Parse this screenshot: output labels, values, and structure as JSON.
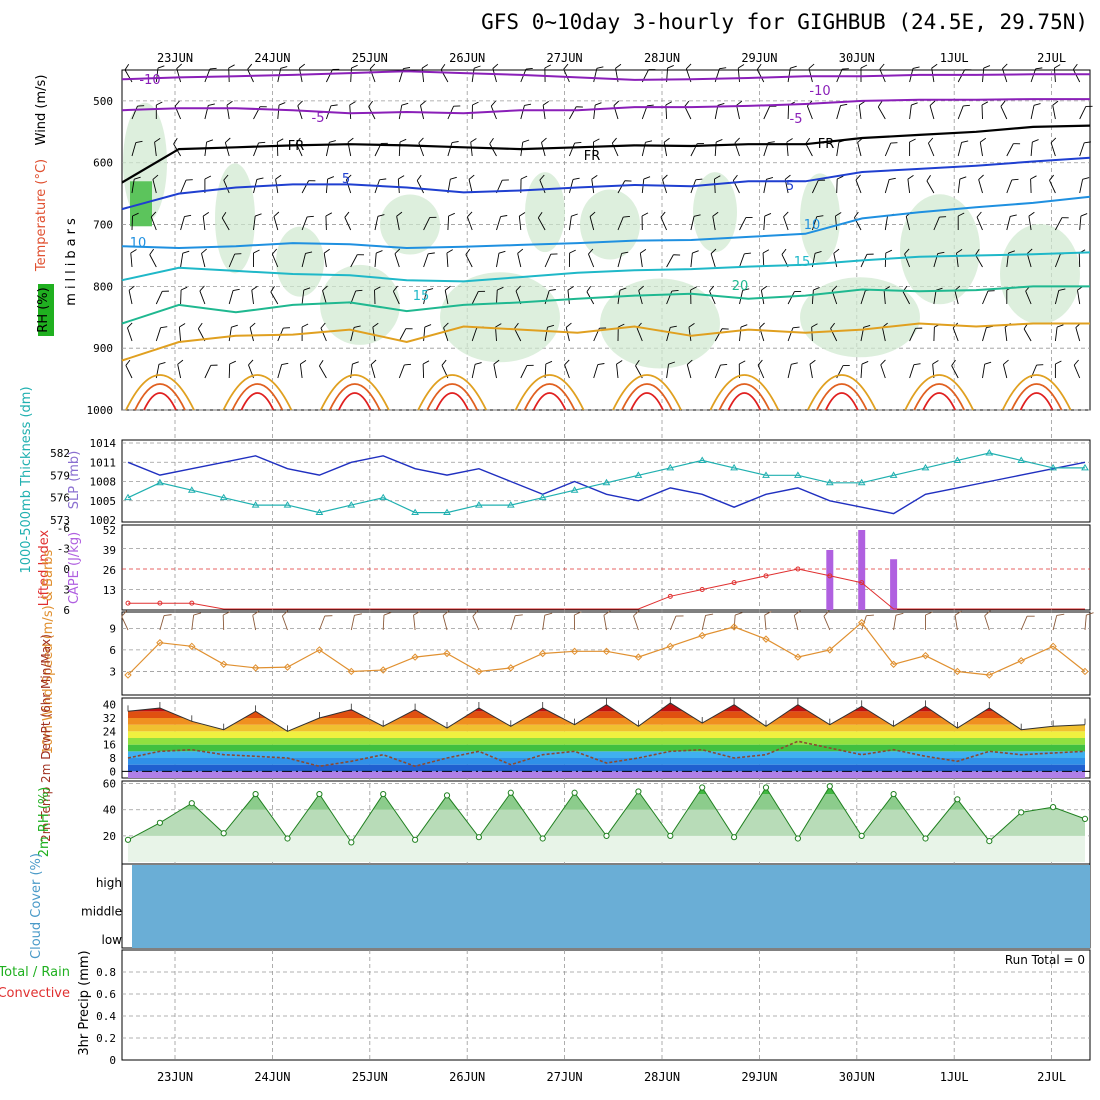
{
  "title": "GFS 0~10day 3-hourly for GIGHBUB (24.5E, 29.75N)",
  "dates": [
    "23JUN",
    "24JUN",
    "25JUN",
    "26JUN",
    "27JUN",
    "28JUN",
    "29JUN",
    "30JUN",
    "1JUL",
    "2JUL"
  ],
  "colors": {
    "temperature": "#e05030",
    "rh": "#20b020",
    "wind": "#000000",
    "slp": "#2030c0",
    "thickness": "#20b0b0",
    "li": "#e03030",
    "cape": "#b060e0",
    "wind10": "#e09030",
    "cloud": "#6aaed6",
    "grid": "#999999"
  },
  "chart_data": [
    {
      "panel": "upper-air",
      "type": "contour",
      "ylabel": "millibars",
      "y_ticks": [
        500,
        600,
        700,
        800,
        900,
        1000
      ],
      "ylim": [
        1000,
        450
      ],
      "left_labels": {
        "wind": "Wind (m/s)",
        "temperature": "Temperature (°C)",
        "rh": "RH (%)"
      },
      "contour_labels": [
        "-10",
        "-10",
        "-5",
        "-5",
        "FR",
        "FR",
        "FR",
        "5",
        "5",
        "10",
        "10",
        "15",
        "15",
        "20"
      ],
      "isotherms": [
        {
          "name": "-10",
          "color": "#8a1fb8",
          "values": [
            465,
            462,
            460,
            458,
            455,
            452,
            455,
            458,
            462,
            466,
            465,
            463,
            460,
            460,
            458,
            458,
            457,
            457
          ]
        },
        {
          "name": "-5",
          "color": "#8a1fb8",
          "values": [
            515,
            512,
            512,
            515,
            520,
            518,
            520,
            515,
            515,
            510,
            510,
            508,
            505,
            500,
            498,
            498,
            497,
            497
          ]
        },
        {
          "name": "FR",
          "color": "#000000",
          "values": [
            632,
            578,
            575,
            572,
            570,
            572,
            575,
            578,
            575,
            572,
            573,
            570,
            570,
            560,
            555,
            550,
            542,
            540
          ]
        },
        {
          "name": "5",
          "color": "#1f3fd0",
          "values": [
            675,
            650,
            640,
            635,
            635,
            640,
            648,
            645,
            640,
            636,
            638,
            630,
            630,
            615,
            610,
            605,
            598,
            592
          ]
        },
        {
          "name": "10",
          "color": "#1f90e0",
          "values": [
            735,
            738,
            735,
            730,
            732,
            738,
            736,
            733,
            730,
            726,
            725,
            720,
            715,
            690,
            680,
            672,
            665,
            655
          ]
        },
        {
          "name": "15",
          "color": "#1fb8c8",
          "values": [
            790,
            770,
            775,
            780,
            782,
            790,
            792,
            785,
            778,
            774,
            772,
            768,
            765,
            758,
            752,
            750,
            748,
            745
          ]
        },
        {
          "name": "20",
          "color": "#1fb890",
          "values": [
            860,
            830,
            842,
            830,
            826,
            840,
            830,
            826,
            820,
            815,
            812,
            820,
            815,
            805,
            808,
            806,
            800,
            800
          ]
        },
        {
          "name": "25",
          "color": "#e0a020",
          "values": [
            920,
            890,
            880,
            878,
            870,
            890,
            865,
            870,
            875,
            865,
            880,
            870,
            875,
            870,
            860,
            865,
            860,
            860
          ]
        }
      ]
    },
    {
      "panel": "slp-thickness",
      "type": "line",
      "ylabel_left": "1000-500mb Thickness (dm)",
      "ylabel_right": "SLP (mb)",
      "y_ticks_left": [
        "582",
        "579",
        "576",
        "573"
      ],
      "y_ticks_right": [
        "1014",
        "1011",
        "1008",
        "1005",
        "1002"
      ],
      "series": [
        {
          "name": "SLP",
          "values": [
            1011,
            1009,
            1010,
            1011,
            1012,
            1010,
            1009,
            1011,
            1012,
            1010,
            1009,
            1010,
            1008,
            1006,
            1008,
            1006,
            1005,
            1007,
            1006,
            1004,
            1006,
            1007,
            1005,
            1004,
            1003,
            1006,
            1007,
            1008,
            1009,
            1010,
            1011
          ]
        },
        {
          "name": "Thickness",
          "values": [
            576,
            578,
            577,
            576,
            575,
            575,
            574,
            575,
            576,
            574,
            574,
            575,
            575,
            576,
            577,
            578,
            579,
            580,
            581,
            580,
            579,
            579,
            578,
            578,
            579,
            580,
            581,
            582,
            581,
            580,
            580
          ]
        }
      ]
    },
    {
      "panel": "li-cape",
      "type": "bar",
      "ylabel_left": "Lifted Index",
      "ylabel_right": "CAPE (J/kg)",
      "y_ticks_left": [
        "-6",
        "-3",
        "0",
        "3",
        "6"
      ],
      "y_ticks_right": [
        "52",
        "39",
        "26",
        "13"
      ],
      "series": [
        {
          "name": "Lifted Index",
          "values": [
            5,
            5,
            5,
            6,
            7,
            7,
            7,
            7,
            7,
            7,
            7,
            7,
            7,
            7,
            7,
            7,
            6,
            4,
            3,
            2,
            1,
            0,
            1,
            2,
            7,
            7,
            7,
            7,
            7,
            7,
            7
          ]
        },
        {
          "name": "CAPE",
          "values": [
            0,
            0,
            0,
            0,
            0,
            0,
            0,
            0,
            0,
            0,
            0,
            0,
            0,
            0,
            0,
            0,
            0,
            0,
            0,
            0,
            0,
            0,
            39,
            52,
            33,
            0,
            0,
            0,
            0,
            0,
            0
          ]
        }
      ]
    },
    {
      "panel": "wind10m",
      "type": "line",
      "ylabel": "10m Wind Speed (m/s) & Barbs",
      "y_ticks": [
        "9",
        "6",
        "3"
      ],
      "series": [
        {
          "name": "10m Wind Speed",
          "values": [
            2.5,
            7.0,
            6.5,
            4.0,
            3.5,
            3.6,
            6.0,
            3.0,
            3.2,
            5.0,
            5.5,
            3.0,
            3.5,
            5.5,
            5.8,
            5.8,
            5.0,
            6.5,
            8.0,
            9.2,
            7.5,
            5.0,
            6.0,
            9.8,
            4.0,
            5.2,
            3.0,
            2.5,
            4.5,
            6.5,
            3.0
          ]
        }
      ]
    },
    {
      "panel": "temp-dewpoint",
      "type": "area",
      "ylabel": "2m Temp 2m DewPt (6hr Min/Max)",
      "y_ticks": [
        "40",
        "32",
        "24",
        "16",
        "8",
        "0"
      ],
      "series": [
        {
          "name": "2m Temp",
          "values": [
            36,
            38,
            30,
            25,
            36,
            24,
            32,
            37,
            27,
            37,
            26,
            38,
            27,
            38,
            28,
            40,
            27,
            41,
            29,
            40,
            27,
            40,
            28,
            39,
            27,
            39,
            26,
            38,
            25,
            27,
            28
          ]
        },
        {
          "name": "2m DewPt",
          "values": [
            8,
            12,
            13,
            10,
            9,
            8,
            3,
            6,
            10,
            3,
            8,
            12,
            4,
            10,
            12,
            5,
            8,
            12,
            13,
            8,
            10,
            18,
            14,
            10,
            13,
            9,
            6,
            12,
            10,
            11,
            12
          ]
        }
      ]
    },
    {
      "panel": "rh2m",
      "type": "area",
      "ylabel": "2m RH (%)",
      "y_ticks": [
        "60",
        "40",
        "20"
      ],
      "series": [
        {
          "name": "2m RH",
          "values": [
            17,
            30,
            45,
            22,
            52,
            18,
            52,
            15,
            52,
            17,
            51,
            19,
            53,
            18,
            53,
            20,
            54,
            20,
            57,
            19,
            57,
            18,
            58,
            20,
            52,
            18,
            48,
            16,
            38,
            42,
            33
          ]
        }
      ]
    },
    {
      "panel": "cloud",
      "type": "heatmap",
      "ylabel": "Cloud Cover (%)",
      "levels": [
        "high",
        "middle",
        "low"
      ]
    },
    {
      "panel": "precip",
      "type": "bar",
      "ylabel_top": "Total / Rain",
      "ylabel_bottom": "Convective",
      "ylabel": "3hr Precip (mm)",
      "y_ticks": [
        "0.8",
        "0.6",
        "0.4",
        "0.2",
        "0"
      ],
      "run_total": "Run Total = 0",
      "values": []
    }
  ]
}
